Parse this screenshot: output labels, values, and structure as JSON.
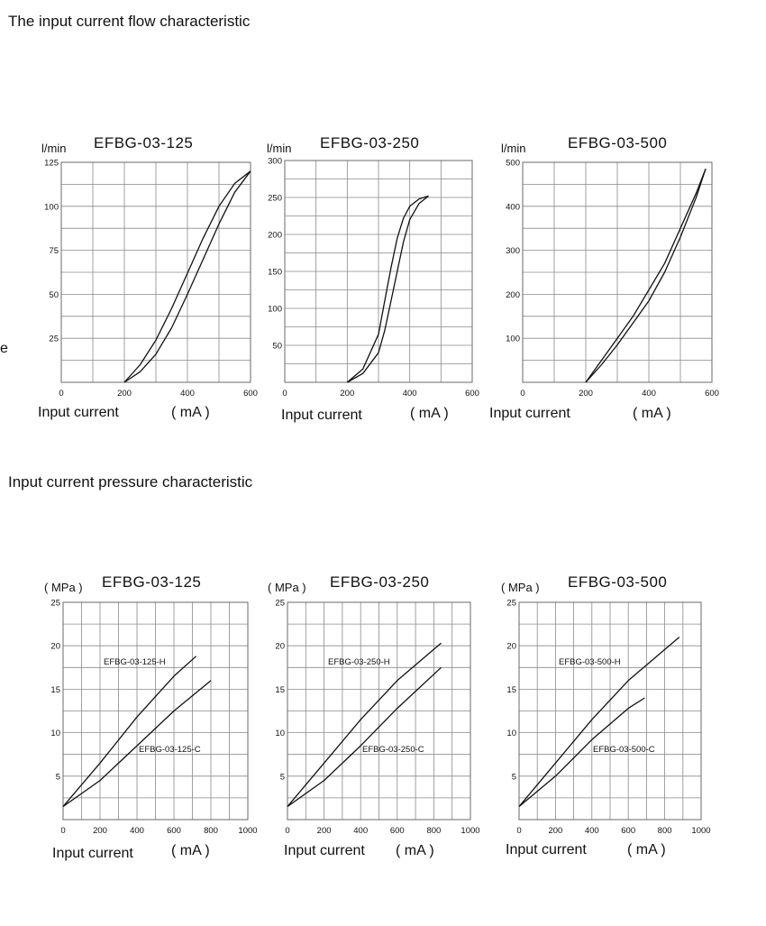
{
  "sections": {
    "flow_title": "The input current flow characteristic",
    "pressure_title": "Input current pressure characteristic"
  },
  "stray_text": "e",
  "chart_data": [
    {
      "type": "line",
      "title": "EFBG-03-125",
      "ylabel": "l/min",
      "xlabel": "Input current",
      "xunit": "( mA )",
      "xlim": [
        0,
        600
      ],
      "ylim": [
        0,
        125
      ],
      "xticks": [
        0,
        200,
        400,
        600
      ],
      "yticks": [
        25,
        50,
        75,
        100,
        125
      ],
      "series": [
        {
          "x": [
            200,
            250,
            300,
            350,
            400,
            450,
            500,
            550,
            600
          ],
          "y": [
            0,
            10,
            24,
            42,
            62,
            82,
            100,
            113,
            120
          ]
        },
        {
          "x": [
            200,
            250,
            300,
            350,
            400,
            450,
            500,
            550,
            600
          ],
          "y": [
            0,
            6,
            16,
            31,
            50,
            70,
            90,
            108,
            120
          ]
        }
      ]
    },
    {
      "type": "line",
      "title": "EFBG-03-250",
      "ylabel": "l/min",
      "xlabel": "Input current",
      "xunit": "( mA )",
      "xlim": [
        0,
        600
      ],
      "ylim": [
        0,
        300
      ],
      "xticks": [
        0,
        200,
        400,
        600
      ],
      "yticks": [
        50,
        100,
        150,
        200,
        250,
        300
      ],
      "series": [
        {
          "x": [
            200,
            250,
            300,
            320,
            340,
            360,
            380,
            400,
            430,
            460
          ],
          "y": [
            0,
            18,
            65,
            110,
            155,
            195,
            222,
            238,
            248,
            252
          ]
        },
        {
          "x": [
            200,
            250,
            300,
            320,
            340,
            360,
            380,
            400,
            430,
            460
          ],
          "y": [
            0,
            12,
            40,
            70,
            110,
            150,
            190,
            220,
            242,
            252
          ]
        }
      ]
    },
    {
      "type": "line",
      "title": "EFBG-03-500",
      "ylabel": "l/min",
      "xlabel": "Input current",
      "xunit": "( mA )",
      "xlim": [
        0,
        600
      ],
      "ylim": [
        0,
        500
      ],
      "xticks": [
        0,
        200,
        400,
        600
      ],
      "yticks": [
        100,
        200,
        300,
        400,
        500
      ],
      "series": [
        {
          "x": [
            200,
            250,
            300,
            350,
            400,
            450,
            500,
            550,
            580
          ],
          "y": [
            0,
            50,
            100,
            150,
            210,
            270,
            350,
            430,
            485
          ]
        },
        {
          "x": [
            200,
            250,
            300,
            350,
            400,
            450,
            500,
            550,
            580
          ],
          "y": [
            0,
            40,
            85,
            135,
            185,
            250,
            330,
            420,
            485
          ]
        }
      ]
    },
    {
      "type": "line",
      "title": "EFBG-03-125",
      "ylabel": "( MPa )",
      "xlabel": "Input current",
      "xunit": "( mA )",
      "xlim": [
        0,
        1000
      ],
      "ylim": [
        0,
        25
      ],
      "xticks": [
        0,
        200,
        400,
        600,
        800,
        1000
      ],
      "yticks": [
        5,
        10,
        15,
        20,
        25
      ],
      "series": [
        {
          "name": "EFBG-03-125-H",
          "x": [
            0,
            200,
            400,
            600,
            720
          ],
          "y": [
            1.5,
            6.5,
            11.8,
            16.5,
            18.8
          ]
        },
        {
          "name": "EFBG-03-125-C",
          "x": [
            0,
            200,
            400,
            600,
            800
          ],
          "y": [
            1.5,
            4.5,
            8.5,
            12.5,
            16
          ]
        }
      ]
    },
    {
      "type": "line",
      "title": "EFBG-03-250",
      "ylabel": "( MPa )",
      "xlabel": "Input current",
      "xunit": "( mA )",
      "xlim": [
        0,
        1000
      ],
      "ylim": [
        0,
        25
      ],
      "xticks": [
        0,
        200,
        400,
        600,
        800,
        1000
      ],
      "yticks": [
        5,
        10,
        15,
        20,
        25
      ],
      "series": [
        {
          "name": "EFBG-03-250-H",
          "x": [
            0,
            200,
            400,
            600,
            840
          ],
          "y": [
            1.5,
            6.5,
            11.5,
            16,
            20.3
          ]
        },
        {
          "name": "EFBG-03-250-C",
          "x": [
            0,
            200,
            400,
            600,
            840
          ],
          "y": [
            1.5,
            4.5,
            8.5,
            12.8,
            17.5
          ]
        }
      ]
    },
    {
      "type": "line",
      "title": "EFBG-03-500",
      "ylabel": "( MPa )",
      "xlabel": "Input current",
      "xunit": "( mA )",
      "xlim": [
        0,
        1000
      ],
      "ylim": [
        0,
        25
      ],
      "xticks": [
        0,
        200,
        400,
        600,
        800,
        1000
      ],
      "yticks": [
        5,
        10,
        15,
        20,
        25
      ],
      "series": [
        {
          "name": "EFBG-03-500-H",
          "x": [
            0,
            200,
            400,
            600,
            880
          ],
          "y": [
            1.5,
            6.5,
            11.5,
            16,
            21
          ]
        },
        {
          "name": "EFBG-03-500-C",
          "x": [
            0,
            200,
            400,
            600,
            690
          ],
          "y": [
            1.5,
            5,
            9.2,
            12.8,
            14
          ]
        }
      ]
    }
  ]
}
